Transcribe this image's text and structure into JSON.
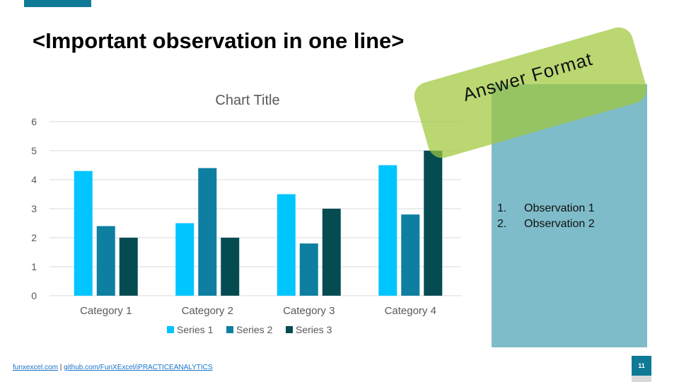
{
  "slide": {
    "title": "<Important observation in one line>",
    "stamp_text": "Answer Format",
    "observations": [
      {
        "num": "1.",
        "text": "Observation 1"
      },
      {
        "num": "2.",
        "text": "Observation 2"
      }
    ],
    "footer": {
      "link1": "funxexcel.com",
      "separator": "|",
      "link2": "github.com/FunXExcel/iPRACTICEANALYTICS"
    },
    "page_number": "11",
    "colors": {
      "accent": "#0e7a96",
      "panel": "#7fbcca",
      "stamp": "#9fc83c"
    }
  },
  "chart_data": {
    "type": "bar",
    "title": "Chart Title",
    "categories": [
      "Category 1",
      "Category 2",
      "Category 3",
      "Category 4"
    ],
    "series": [
      {
        "name": "Series 1",
        "color": "#00c5ff",
        "values": [
          4.3,
          2.5,
          3.5,
          4.5
        ]
      },
      {
        "name": "Series 2",
        "color": "#0e7fa0",
        "values": [
          2.4,
          4.4,
          1.8,
          2.8
        ]
      },
      {
        "name": "Series 3",
        "color": "#054c52",
        "values": [
          2,
          2,
          3,
          5
        ]
      }
    ],
    "ylim": [
      0,
      6
    ],
    "yticks": [
      0,
      1,
      2,
      3,
      4,
      5,
      6
    ],
    "grid": true,
    "legend": "bottom"
  }
}
